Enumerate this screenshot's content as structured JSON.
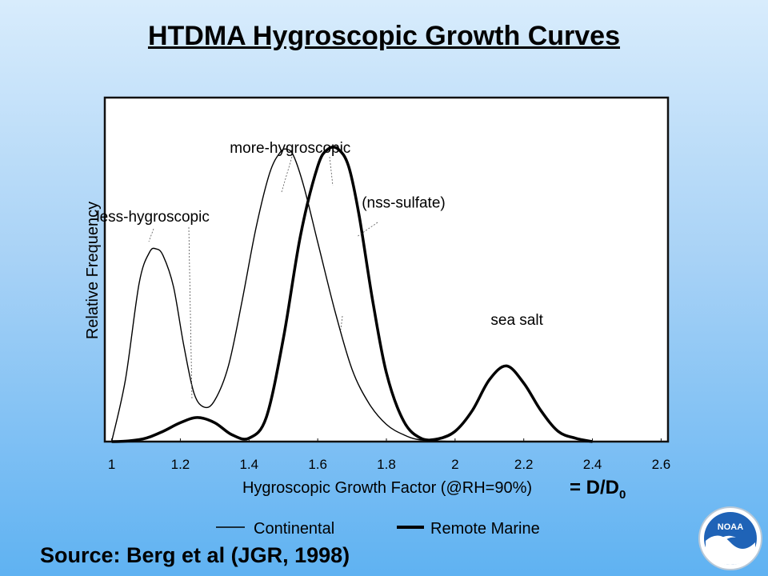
{
  "slide": {
    "title": "HTDMA Hygroscopic Growth Curves",
    "d0_label_prefix": "= D/D",
    "d0_label_sub": "0",
    "source": "Source:  Berg et al (JGR, 1998)",
    "logo_text": "NOAA"
  },
  "chart_data": {
    "type": "line",
    "xlabel": "Hygroscopic Growth Factor (@RH=90%)",
    "ylabel": "Relative Frequency",
    "xlim": [
      0.98,
      2.62
    ],
    "ylim": [
      0,
      1
    ],
    "x_ticks": [
      1,
      1.2,
      1.4,
      1.6,
      1.8,
      2,
      2.2,
      2.4,
      2.6
    ],
    "x_tick_labels": [
      "1",
      "1.2",
      "1.4",
      "1.6",
      "1.8",
      "2",
      "2.2",
      "2.4",
      "2.6"
    ],
    "grid": false,
    "legend_position": "bottom",
    "series": [
      {
        "name": "Continental",
        "style": "thin",
        "x": [
          1.0,
          1.04,
          1.08,
          1.11,
          1.13,
          1.15,
          1.18,
          1.21,
          1.24,
          1.27,
          1.3,
          1.34,
          1.38,
          1.42,
          1.46,
          1.49,
          1.51,
          1.53,
          1.56,
          1.6,
          1.65,
          1.7,
          1.75,
          1.8,
          1.85,
          1.9,
          2.0
        ],
        "y": [
          0.0,
          0.18,
          0.46,
          0.55,
          0.56,
          0.54,
          0.45,
          0.28,
          0.14,
          0.1,
          0.12,
          0.22,
          0.41,
          0.62,
          0.78,
          0.84,
          0.85,
          0.83,
          0.74,
          0.58,
          0.38,
          0.21,
          0.11,
          0.05,
          0.02,
          0.005,
          0.0
        ]
      },
      {
        "name": "Remote Marine",
        "style": "thick",
        "x": [
          1.0,
          1.05,
          1.1,
          1.15,
          1.2,
          1.25,
          1.3,
          1.35,
          1.4,
          1.45,
          1.5,
          1.55,
          1.6,
          1.63,
          1.66,
          1.69,
          1.72,
          1.76,
          1.8,
          1.85,
          1.9,
          1.95,
          2.0,
          2.05,
          2.1,
          2.15,
          2.2,
          2.25,
          2.3,
          2.35,
          2.4
        ],
        "y": [
          0.0,
          0.002,
          0.01,
          0.03,
          0.055,
          0.07,
          0.055,
          0.02,
          0.01,
          0.07,
          0.3,
          0.6,
          0.8,
          0.85,
          0.85,
          0.8,
          0.66,
          0.41,
          0.2,
          0.06,
          0.01,
          0.008,
          0.03,
          0.09,
          0.18,
          0.22,
          0.17,
          0.09,
          0.03,
          0.01,
          0.0
        ]
      }
    ],
    "annotations": [
      {
        "text": "less-hygroscopic",
        "x": 1.12,
        "y": 0.64
      },
      {
        "text": "more-hygroscopic",
        "x": 1.52,
        "y": 0.84
      },
      {
        "text": "(nss-sulfate)",
        "x": 1.85,
        "y": 0.68
      },
      {
        "text": "sea salt",
        "x": 2.18,
        "y": 0.34
      }
    ]
  }
}
